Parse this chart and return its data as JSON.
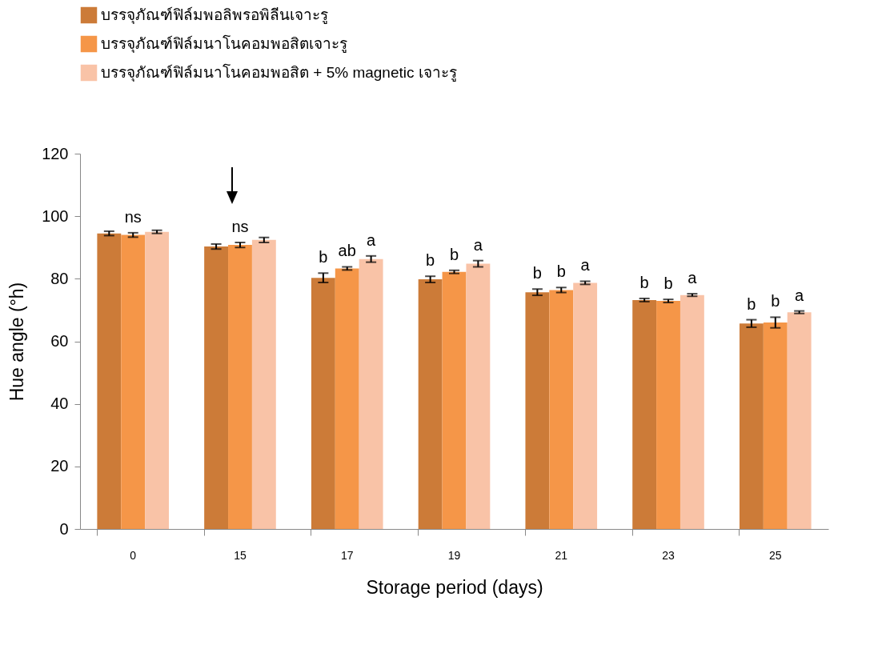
{
  "chart_data": {
    "type": "bar",
    "xlabel": "Storage period (days)",
    "ylabel": "Hue angle (°h)",
    "categories": [
      "0",
      "15",
      "17",
      "19",
      "21",
      "23",
      "25"
    ],
    "ylim": [
      0,
      120
    ],
    "yticks": [
      0,
      20,
      40,
      60,
      80,
      100,
      120
    ],
    "grid": false,
    "legend": "top",
    "series": [
      {
        "name": "บรรจุภัณฑ์ฟิล์มพอลิพรอพิลีนเจาะรู",
        "color": "#cc7b38",
        "values": [
          94.5,
          90.3,
          80.3,
          79.8,
          75.7,
          73.2,
          65.7
        ],
        "errors": [
          0.7,
          0.8,
          1.5,
          1.0,
          1.0,
          0.5,
          1.2
        ],
        "value_labels": [
          null,
          null,
          "b",
          "b",
          "b",
          "b",
          "b"
        ]
      },
      {
        "name": "บรรจุภัณฑ์ฟิล์มนาโนคอมพอสิตเจาะรู",
        "color": "#f59648",
        "values": [
          94.0,
          90.8,
          83.3,
          82.2,
          76.4,
          72.9,
          66.0
        ],
        "errors": [
          0.7,
          0.8,
          0.5,
          0.5,
          0.8,
          0.5,
          1.7
        ],
        "value_labels": [
          "ns",
          "ns",
          "ab",
          "b",
          "b",
          "b",
          "b"
        ]
      },
      {
        "name": "บรรจุภัณฑ์ฟิล์มนาโนคอมพอสิต + 5% magnetic เจาะรู",
        "color": "#f9c3a7",
        "values": [
          95.0,
          92.4,
          86.3,
          84.8,
          78.7,
          74.8,
          69.3
        ],
        "errors": [
          0.5,
          0.8,
          1.0,
          1.0,
          0.5,
          0.4,
          0.4
        ],
        "value_labels": [
          null,
          null,
          "a",
          "a",
          "a",
          "a",
          "a"
        ]
      }
    ]
  }
}
